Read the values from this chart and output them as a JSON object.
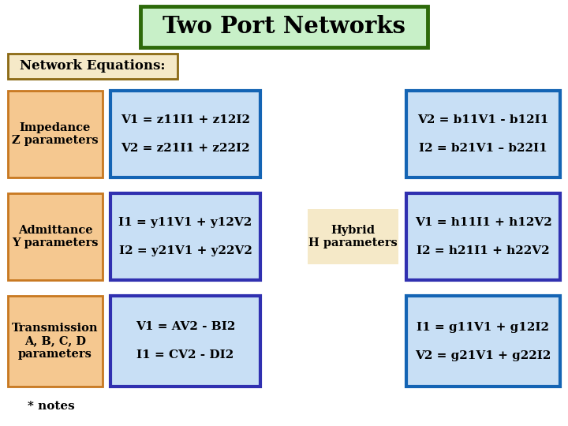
{
  "title": "Two Port Networks",
  "title_bg": "#c8f0c8",
  "title_border": "#2d6a0a",
  "title_fontsize": 20,
  "background_color": "#ffffff",
  "network_eq_label": "Network Equations:",
  "network_eq_bg": "#f5e9c8",
  "network_eq_border": "#8b6914",
  "label_bg": "#f5c890",
  "label_border": "#c87820",
  "eq_bg": "#c8dff5",
  "hybrid_bg": "#f5e9c8",
  "hybrid_border": "#c87820",
  "rows": [
    {
      "label": "Impedance\nZ parameters",
      "eq1": "V1 = z11I1 + z12I2",
      "eq2": "V2 = z21I1 + z22I2",
      "left_box_border": "#1464b4",
      "right_label": null,
      "right_eq1": "V2 = b11V1 - b12I1",
      "right_eq2": "I2 = b21V1 – b22I1",
      "right_box_border": "#1464b4",
      "right_box_bg": "#c8dff5"
    },
    {
      "label": "Admittance\nY parameters",
      "eq1": "I1 = y11V1 + y12V2",
      "eq2": "I2 = y21V1 + y22V2",
      "left_box_border": "#3030b0",
      "right_label": "Hybrid\nH parameters",
      "right_eq1": "V1 = h11I1 + h12V2",
      "right_eq2": "I2 = h21I1 + h22V2",
      "right_box_border": "#3030b0",
      "right_box_bg": "#c8dff5"
    },
    {
      "label": "Transmission\nA, B, C, D\nparameters",
      "eq1": "V1 = AV2 - BI2",
      "eq2": "I1 = CV2 - DI2",
      "left_box_border": "#3030b0",
      "right_label": null,
      "right_eq1": "I1 = g11V1 + g12I2",
      "right_eq2": "V2 = g21V1 + g22I2",
      "right_box_border": "#1464b4",
      "right_box_bg": "#c8dff5"
    }
  ],
  "notes": "* notes"
}
